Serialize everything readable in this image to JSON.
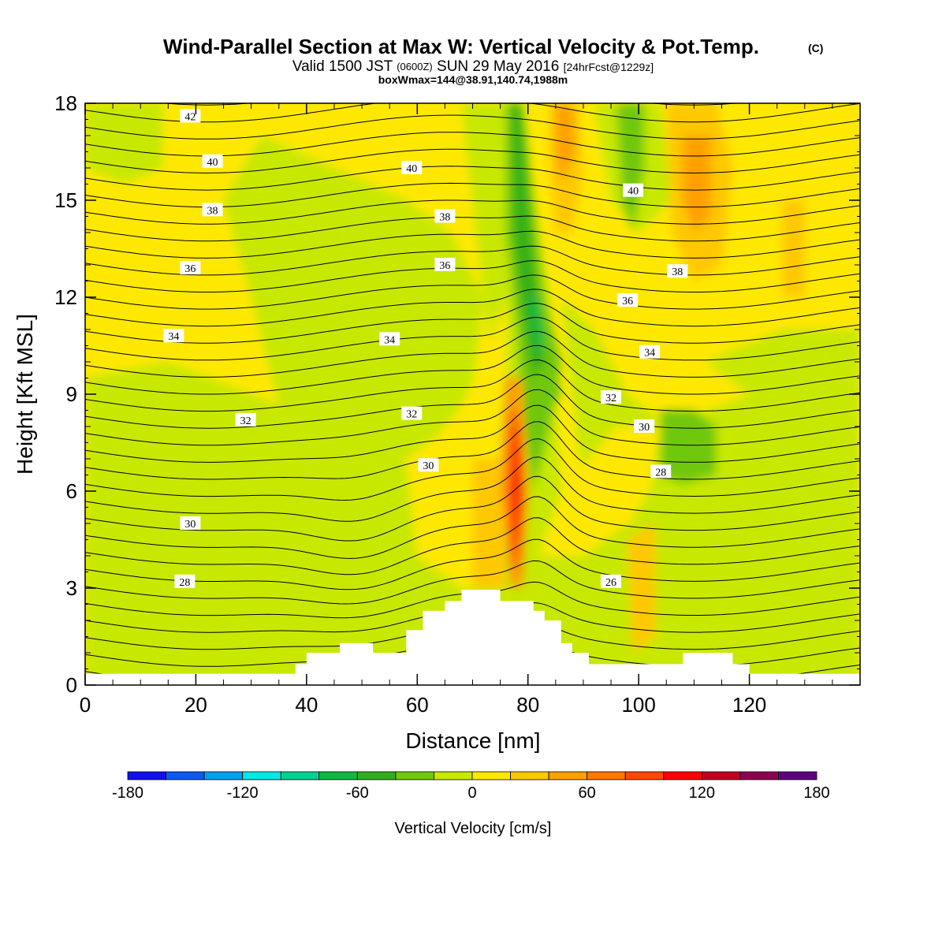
{
  "header": {
    "title": "Wind-Parallel Section at Max W: Vertical Velocity & Pot.Temp.",
    "title_suffix": "(C)",
    "subtitle_pre": "Valid 1500 JST",
    "subtitle_small1": "(0600Z)",
    "subtitle_mid": "SUN 29 May 2016",
    "subtitle_small2": "[24hrFcst@1229z]",
    "subtitle2": "boxWmax=144@38.91,140.74,1988m"
  },
  "chart_data": {
    "type": "heatmap",
    "xlabel": "Distance [nm]",
    "ylabel": "Height [Kft MSL]",
    "xlim": [
      0,
      140
    ],
    "ylim": [
      0,
      18
    ],
    "xticks": [
      "0",
      "20",
      "40",
      "60",
      "80",
      "100",
      "120"
    ],
    "yticks": [
      "0",
      "3",
      "6",
      "9",
      "12",
      "15",
      "18"
    ],
    "colorbar": {
      "label": "Vertical Velocity [cm/s]",
      "range": [
        -180,
        180
      ],
      "tick_labels": [
        "-180",
        "-120",
        "-60",
        "0",
        "60",
        "120",
        "180"
      ],
      "colors": [
        "#1010e8",
        "#0a5cf0",
        "#00a0f0",
        "#00e8e8",
        "#00d090",
        "#10b840",
        "#30b018",
        "#70c810",
        "#c8e800",
        "#ffe800",
        "#ffc800",
        "#ffa000",
        "#ff7800",
        "#ff4800",
        "#ff0000",
        "#c00020",
        "#900050",
        "#600080"
      ]
    },
    "background_level": "0 to 20 cm/s",
    "features": [
      {
        "name": "updraft core",
        "x_nm": 78,
        "z_kft": 6.5,
        "w_max_cms": 144
      },
      {
        "name": "downdraft band",
        "x_nm": 82,
        "z_kft": 12,
        "w_cms": -100
      }
    ],
    "terrain_kft": [
      [
        0,
        0.35
      ],
      [
        38,
        0.35
      ],
      [
        38,
        0.65
      ],
      [
        40,
        0.65
      ],
      [
        40,
        1.0
      ],
      [
        46,
        1.0
      ],
      [
        46,
        1.3
      ],
      [
        52,
        1.3
      ],
      [
        52,
        1.0
      ],
      [
        58,
        1.0
      ],
      [
        58,
        1.7
      ],
      [
        61,
        1.7
      ],
      [
        61,
        2.3
      ],
      [
        65,
        2.3
      ],
      [
        65,
        2.6
      ],
      [
        68,
        2.6
      ],
      [
        68,
        2.95
      ],
      [
        75,
        2.95
      ],
      [
        75,
        2.6
      ],
      [
        81,
        2.6
      ],
      [
        81,
        2.3
      ],
      [
        83,
        2.3
      ],
      [
        83,
        2.0
      ],
      [
        86,
        2.0
      ],
      [
        86,
        1.3
      ],
      [
        88,
        1.3
      ],
      [
        88,
        1.0
      ],
      [
        91,
        1.0
      ],
      [
        91,
        0.65
      ],
      [
        108,
        0.65
      ],
      [
        108,
        1.0
      ],
      [
        117,
        1.0
      ],
      [
        117,
        0.65
      ],
      [
        120,
        0.65
      ],
      [
        120,
        0.35
      ],
      [
        140,
        0.35
      ]
    ],
    "theta_contours_c": [
      {
        "level": "26",
        "label_x": 95,
        "label_z": 3.2
      },
      {
        "level": "28",
        "label_x": 18,
        "label_z": 3.2
      },
      {
        "level": "28",
        "label_x": 104,
        "label_z": 6.6
      },
      {
        "level": "30",
        "label_x": 19,
        "label_z": 5.0
      },
      {
        "level": "30",
        "label_x": 62,
        "label_z": 6.8
      },
      {
        "level": "30",
        "label_x": 101,
        "label_z": 8.0
      },
      {
        "level": "32",
        "label_x": 29,
        "label_z": 8.2
      },
      {
        "level": "32",
        "label_x": 59,
        "label_z": 8.4
      },
      {
        "level": "32",
        "label_x": 95,
        "label_z": 8.9
      },
      {
        "level": "34",
        "label_x": 16,
        "label_z": 10.8
      },
      {
        "level": "34",
        "label_x": 55,
        "label_z": 10.7
      },
      {
        "level": "34",
        "label_x": 102,
        "label_z": 10.3
      },
      {
        "level": "36",
        "label_x": 19,
        "label_z": 12.9
      },
      {
        "level": "36",
        "label_x": 65,
        "label_z": 13.0
      },
      {
        "level": "36",
        "label_x": 98,
        "label_z": 11.9
      },
      {
        "level": "38",
        "label_x": 23,
        "label_z": 14.7
      },
      {
        "level": "38",
        "label_x": 65,
        "label_z": 14.5
      },
      {
        "level": "38",
        "label_x": 107,
        "label_z": 12.8
      },
      {
        "level": "40",
        "label_x": 23,
        "label_z": 16.2
      },
      {
        "level": "40",
        "label_x": 59,
        "label_z": 16.0
      },
      {
        "level": "40",
        "label_x": 99,
        "label_z": 15.3
      },
      {
        "level": "42",
        "label_x": 19,
        "label_z": 17.6
      }
    ]
  }
}
